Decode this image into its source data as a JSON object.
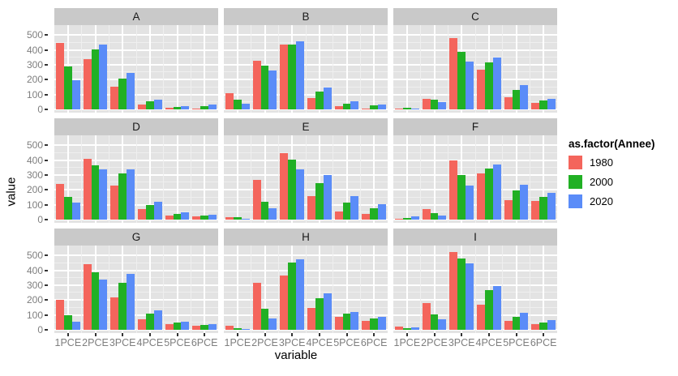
{
  "chart_data": {
    "type": "bar",
    "title": "",
    "xlabel": "variable",
    "ylabel": "value",
    "legend_title": "as.factor(Annee)",
    "legend_position": "right",
    "grid": true,
    "panel_bg": "#e3e3e3",
    "strip_bg": "#c9c9c9",
    "categories": [
      "1PCE",
      "2PCE",
      "3PCE",
      "4PCE",
      "5PCE",
      "6PCE"
    ],
    "series_names": [
      "1980",
      "2000",
      "2020"
    ],
    "series_colors": [
      "#f4655c",
      "#21b024",
      "#5a8cf8"
    ],
    "y_ticks": [
      0,
      100,
      200,
      300,
      400,
      500
    ],
    "ylim": [
      0,
      540
    ],
    "facets": [
      {
        "label": "A",
        "series": [
          {
            "name": "1980",
            "values": [
              450,
              340,
              155,
              35,
              12,
              5
            ]
          },
          {
            "name": "2000",
            "values": [
              290,
              405,
              210,
              52,
              15,
              22
            ]
          },
          {
            "name": "2020",
            "values": [
              195,
              435,
              245,
              65,
              20,
              35
            ]
          }
        ]
      },
      {
        "label": "B",
        "series": [
          {
            "name": "1980",
            "values": [
              110,
              330,
              435,
              75,
              22,
              8
            ]
          },
          {
            "name": "2000",
            "values": [
              65,
              295,
              435,
              120,
              40,
              25
            ]
          },
          {
            "name": "2020",
            "values": [
              40,
              260,
              460,
              150,
              55,
              35
            ]
          }
        ]
      },
      {
        "label": "C",
        "series": [
          {
            "name": "1980",
            "values": [
              8,
              72,
              480,
              268,
              80,
              45
            ]
          },
          {
            "name": "2000",
            "values": [
              12,
              68,
              385,
              315,
              130,
              58
            ]
          },
          {
            "name": "2020",
            "values": [
              8,
              50,
              322,
              348,
              165,
              72
            ]
          }
        ]
      },
      {
        "label": "D",
        "series": [
          {
            "name": "1980",
            "values": [
              240,
              410,
              228,
              70,
              30,
              20
            ]
          },
          {
            "name": "2000",
            "values": [
              155,
              365,
              310,
              100,
              38,
              27
            ]
          },
          {
            "name": "2020",
            "values": [
              112,
              340,
              340,
              120,
              48,
              35
            ]
          }
        ]
      },
      {
        "label": "E",
        "series": [
          {
            "name": "1980",
            "values": [
              18,
              265,
              445,
              160,
              55,
              40
            ]
          },
          {
            "name": "2000",
            "values": [
              15,
              120,
              405,
              245,
              115,
              78
            ]
          },
          {
            "name": "2020",
            "values": [
              8,
              75,
              340,
              300,
              160,
              105
            ]
          }
        ]
      },
      {
        "label": "F",
        "series": [
          {
            "name": "1980",
            "values": [
              5,
              70,
              400,
              310,
              132,
              125
            ]
          },
          {
            "name": "2000",
            "values": [
              12,
              42,
              300,
              343,
              195,
              155
            ]
          },
          {
            "name": "2020",
            "values": [
              20,
              30,
              230,
              370,
              235,
              178
            ]
          }
        ]
      },
      {
        "label": "G",
        "series": [
          {
            "name": "1980",
            "values": [
              200,
              443,
              218,
              73,
              37,
              27
            ]
          },
          {
            "name": "2000",
            "values": [
              98,
              390,
              318,
              107,
              48,
              33
            ]
          },
          {
            "name": "2020",
            "values": [
              55,
              340,
              375,
              130,
              57,
              40
            ]
          }
        ]
      },
      {
        "label": "H",
        "series": [
          {
            "name": "1980",
            "values": [
              25,
              315,
              365,
              150,
              88,
              60
            ]
          },
          {
            "name": "2000",
            "values": [
              12,
              140,
              455,
              215,
              110,
              77
            ]
          },
          {
            "name": "2020",
            "values": [
              8,
              75,
              475,
              245,
              122,
              85
            ]
          }
        ]
      },
      {
        "label": "I",
        "series": [
          {
            "name": "1980",
            "values": [
              20,
              180,
              525,
              170,
              62,
              37
            ]
          },
          {
            "name": "2000",
            "values": [
              10,
              105,
              480,
              265,
              88,
              51
            ]
          },
          {
            "name": "2020",
            "values": [
              15,
              72,
              448,
              295,
              112,
              64
            ]
          }
        ]
      }
    ]
  }
}
